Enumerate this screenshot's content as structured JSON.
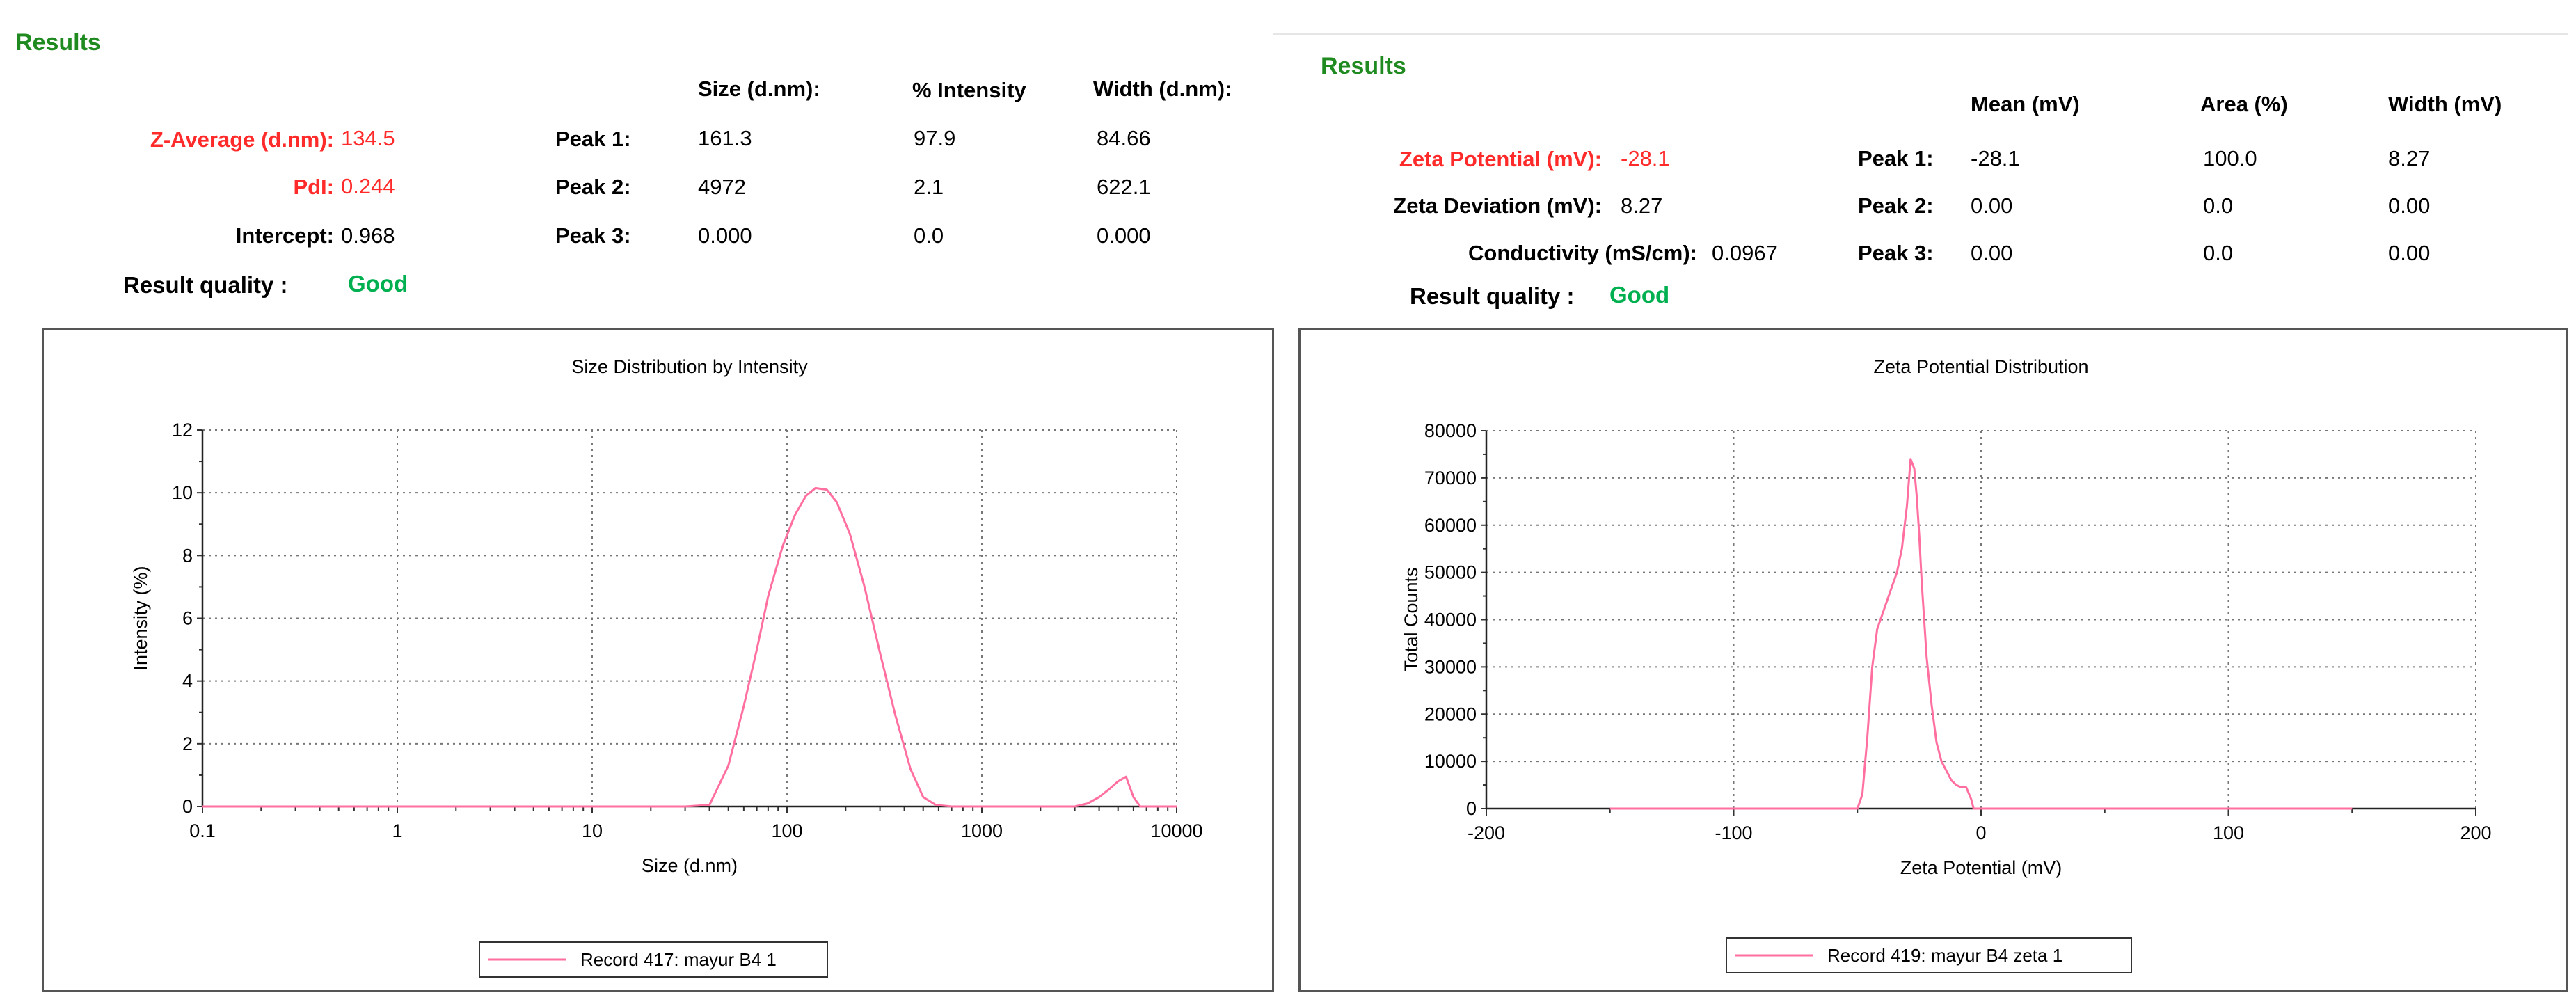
{
  "colors": {
    "title_green": "#1f8a1f",
    "highlight_red": "#ff2a2a",
    "good_green": "#00b050",
    "curve_pink": "#ff6fa0"
  },
  "size_results": {
    "title": "Results",
    "col_headers": [
      "Size (d.nm):",
      "% Intensity",
      "Width (d.nm):"
    ],
    "z_average_label": "Z-Average (d.nm):",
    "z_average_value": "134.5",
    "pdi_label": "PdI:",
    "pdi_value": "0.244",
    "intercept_label": "Intercept:",
    "intercept_value": "0.968",
    "quality_label": "Result quality :",
    "quality_value": "Good",
    "peaks": [
      {
        "label": "Peak 1:",
        "size": "161.3",
        "intensity": "97.9",
        "width": "84.66"
      },
      {
        "label": "Peak 2:",
        "size": "4972",
        "intensity": "2.1",
        "width": "622.1"
      },
      {
        "label": "Peak 3:",
        "size": "0.000",
        "intensity": "0.0",
        "width": "0.000"
      }
    ]
  },
  "zeta_results": {
    "title": "Results",
    "col_headers": [
      "Mean (mV)",
      "Area (%)",
      "Width (mV)"
    ],
    "zeta_potential_label": "Zeta Potential (mV):",
    "zeta_potential_value": "-28.1",
    "zeta_deviation_label": "Zeta Deviation (mV):",
    "zeta_deviation_value": "8.27",
    "conductivity_label": "Conductivity (mS/cm):",
    "conductivity_value": "0.0967",
    "quality_label": "Result quality :",
    "quality_value": "Good",
    "peaks": [
      {
        "label": "Peak 1:",
        "mean": "-28.1",
        "area": "100.0",
        "width": "8.27"
      },
      {
        "label": "Peak 2:",
        "mean": "0.00",
        "area": "0.0",
        "width": "0.00"
      },
      {
        "label": "Peak 3:",
        "mean": "0.00",
        "area": "0.0",
        "width": "0.00"
      }
    ]
  },
  "chart_data": [
    {
      "type": "line",
      "title": "Size Distribution by Intensity",
      "xlabel": "Size (d.nm)",
      "ylabel": "Intensity (%)",
      "xscale": "log",
      "xlim": [
        0.1,
        10000
      ],
      "ylim": [
        0,
        12
      ],
      "xticks": [
        "0.1",
        "1",
        "10",
        "100",
        "1000",
        "10000"
      ],
      "yticks": [
        "0",
        "2",
        "4",
        "6",
        "8",
        "10",
        "12"
      ],
      "grid": true,
      "legend_position": "bottom-center",
      "series": [
        {
          "name": "Record 417: mayur B4 1",
          "color": "#ff6fa0",
          "x": [
            0.1,
            30,
            40,
            50,
            60,
            70,
            80,
            95,
            110,
            125,
            140,
            160,
            180,
            210,
            250,
            300,
            360,
            430,
            500,
            580,
            700,
            1000,
            2000,
            3000,
            3500,
            4000,
            4500,
            5000,
            5500,
            6000,
            6500,
            7000,
            10000
          ],
          "y": [
            0,
            0,
            0.05,
            1.3,
            3.2,
            5.0,
            6.7,
            8.3,
            9.3,
            9.9,
            10.15,
            10.1,
            9.7,
            8.7,
            7.0,
            4.9,
            2.9,
            1.2,
            0.3,
            0.05,
            0,
            0,
            0,
            0,
            0.1,
            0.3,
            0.55,
            0.8,
            0.95,
            0.3,
            0,
            0,
            0
          ]
        }
      ]
    },
    {
      "type": "line",
      "title": "Zeta Potential Distribution",
      "xlabel": "Zeta Potential (mV)",
      "ylabel": "Total Counts",
      "xlim": [
        -200,
        200
      ],
      "ylim": [
        0,
        80000
      ],
      "xticks": [
        "-200",
        "-100",
        "0",
        "100",
        "200"
      ],
      "yticks": [
        "0",
        "10000",
        "20000",
        "30000",
        "40000",
        "50000",
        "60000",
        "70000",
        "80000"
      ],
      "grid": true,
      "legend_position": "bottom-center",
      "series": [
        {
          "name": "Record 419: mayur B4 zeta 1",
          "color": "#ff6fa0",
          "x": [
            -150,
            -50,
            -48,
            -46,
            -44,
            -42,
            -40,
            -38,
            -36,
            -34,
            -32,
            -30,
            -28.5,
            -27,
            -26,
            -25,
            -24,
            -22,
            -20,
            -18,
            -16,
            -14,
            -12,
            -10,
            -8,
            -6,
            -4,
            -3,
            0,
            150
          ],
          "y": [
            0,
            0,
            3000,
            15000,
            30000,
            38000,
            41000,
            44000,
            47000,
            50000,
            55000,
            64000,
            74000,
            72000,
            66000,
            58000,
            48000,
            32000,
            22000,
            14000,
            10000,
            8000,
            6000,
            5000,
            4500,
            4500,
            2000,
            0,
            0,
            0
          ]
        }
      ]
    }
  ]
}
